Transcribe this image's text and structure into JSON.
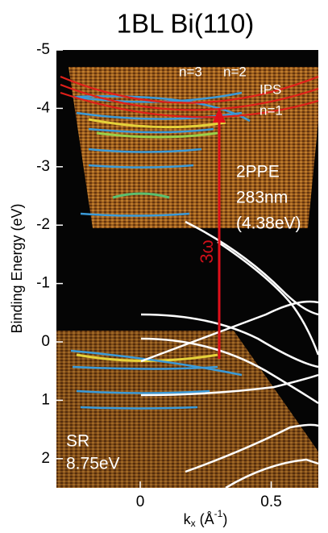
{
  "chart_data": {
    "type": "band-structure",
    "title": "1BL Bi(110)",
    "y_label": "Binding Energy (eV)",
    "x_label": {
      "base": "k",
      "sub": "x",
      "open": " (Å",
      "sup": "-1",
      "close": ")"
    },
    "ylim": [
      -5,
      2.5
    ],
    "yticks": [
      -5,
      -4,
      -3,
      -2,
      -1,
      0,
      1,
      2
    ],
    "xlim": [
      -0.32,
      0.68
    ],
    "xticks": [
      0,
      0.5
    ],
    "annotations": {
      "n3": "n=3",
      "n2": "n=2",
      "ips": "IPS",
      "n1": "n=1",
      "ppe": "2PPE",
      "wl": "283nm",
      "energy": "(4.38eV)",
      "omega": "3ω",
      "sr": "SR",
      "sr_energy": "8.75eV"
    }
  }
}
